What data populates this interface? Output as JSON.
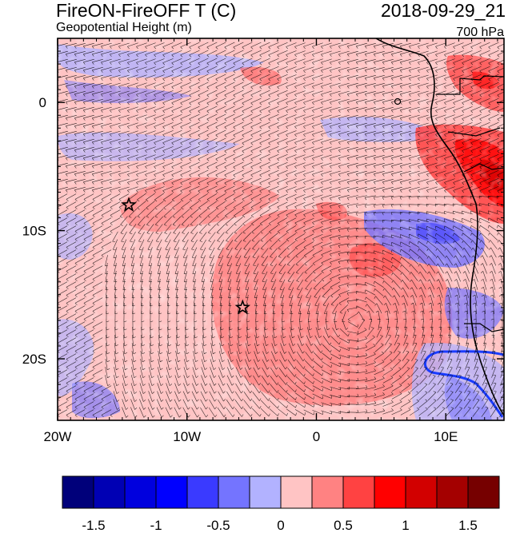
{
  "header": {
    "title": "FireON-FireOFF T (C)",
    "date": "2018-09-29_21",
    "subtitle": "Geopotential Height (m)",
    "level": "700 hPa"
  },
  "chart_data": {
    "type": "heatmap",
    "title": "FireON-FireOFF T (C)",
    "subtitle": "Geopotential Height (m)",
    "valid_time": "2018-09-29_21",
    "level": "700 hPa",
    "x_range": [
      -20,
      14.5
    ],
    "y_range": [
      -24.8,
      5
    ],
    "x_ticks": [
      {
        "value": -20,
        "label": "20W"
      },
      {
        "value": -10,
        "label": "10W"
      },
      {
        "value": 0,
        "label": "0"
      },
      {
        "value": 10,
        "label": "10E"
      }
    ],
    "y_ticks": [
      {
        "value": 0,
        "label": "0"
      },
      {
        "value": -10,
        "label": "10S"
      },
      {
        "value": -20,
        "label": "20S"
      }
    ],
    "markers": [
      {
        "name": "star-marker-west",
        "lon": -14.5,
        "lat": -8
      },
      {
        "name": "star-marker-central",
        "lon": -5.7,
        "lat": -16
      }
    ],
    "features": [
      {
        "name": "warm-anomaly-max",
        "lon": 3,
        "lat": -17,
        "value": 0.6
      },
      {
        "name": "warm-anomaly-coast",
        "lon": 12.5,
        "lat": -5,
        "value": 1.5
      },
      {
        "name": "cool-anomaly-coast",
        "lon": 11,
        "lat": -13,
        "value": -0.6
      }
    ],
    "colorbar": {
      "levels": [
        -1.75,
        -1.5,
        -1.25,
        -1,
        -0.75,
        -0.5,
        -0.25,
        0,
        0.25,
        0.5,
        0.75,
        1,
        1.25,
        1.5,
        1.75
      ],
      "labels": [
        "-1.5",
        "-1",
        "-0.5",
        "0",
        "0.5",
        "1",
        "1.5"
      ],
      "colors": [
        "#00007a",
        "#0000b4",
        "#0000de",
        "#0000ff",
        "#3a3aff",
        "#7474ff",
        "#b2b2ff",
        "#ffc4c4",
        "#ff8282",
        "#ff4242",
        "#ff0000",
        "#d20000",
        "#a40000",
        "#760000"
      ]
    }
  }
}
